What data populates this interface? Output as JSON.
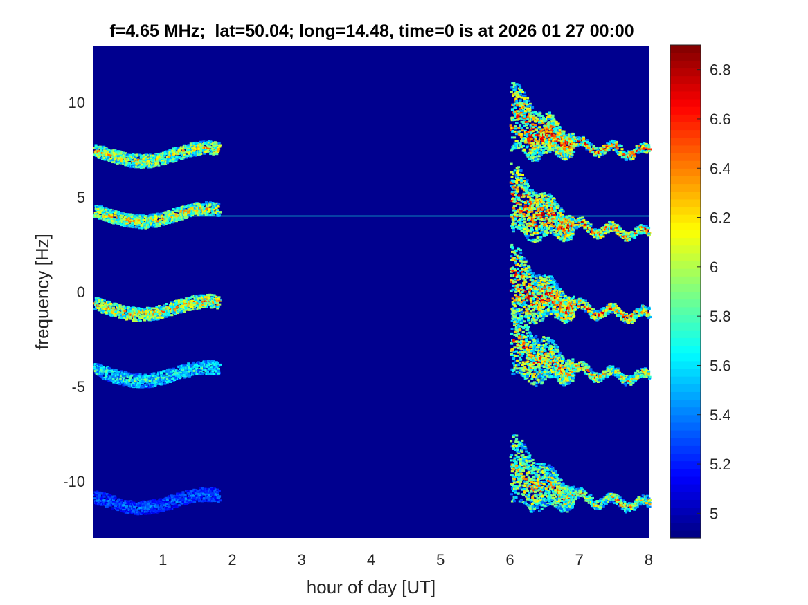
{
  "chart_data": {
    "type": "heatmap",
    "title": "f=4.65 MHz;  lat=50.04; long=14.48, time=0 is at 2026 01 27 00:00",
    "xlabel": "hour of day [UT]",
    "ylabel": "frequency [Hz]",
    "xlim": [
      0,
      8
    ],
    "ylim": [
      -13,
      13
    ],
    "x_ticks": [
      1,
      2,
      3,
      4,
      5,
      6,
      7,
      8
    ],
    "x_tick_labels": [
      "1",
      "2",
      "3",
      "4",
      "5",
      "6",
      "7",
      "8"
    ],
    "y_ticks": [
      -10,
      -5,
      0,
      5,
      10
    ],
    "y_tick_labels": [
      "-10",
      "-5",
      "0",
      "5",
      "10"
    ],
    "colormap": "jet",
    "background_color": "#00008f",
    "colorbar": {
      "range": [
        4.9,
        6.9
      ],
      "ticks": [
        5,
        5.2,
        5.4,
        5.6,
        5.8,
        6,
        6.2,
        6.4,
        6.6,
        6.8
      ],
      "tick_labels": [
        "5",
        "5.2",
        "5.4",
        "5.6",
        "5.8",
        "6",
        "6.2",
        "6.4",
        "6.6",
        "6.8"
      ]
    },
    "constant_line": {
      "y": 4,
      "x_range": [
        0,
        8
      ],
      "intensity": 5.7
    },
    "traces_early": {
      "x_range": [
        0,
        1.8
      ],
      "offsets": [
        7.3,
        4.1,
        -0.8,
        -4.3,
        -11.0
      ],
      "intensities": [
        6.5,
        6.5,
        6.6,
        6.0,
        5.5
      ]
    },
    "traces_late": {
      "x_range": [
        6.0,
        8.0
      ],
      "start_values": [
        9.3,
        5.0,
        0.7,
        -2.6,
        -9.3
      ],
      "intensities": [
        6.9,
        6.9,
        6.9,
        6.7,
        6.6
      ]
    }
  }
}
